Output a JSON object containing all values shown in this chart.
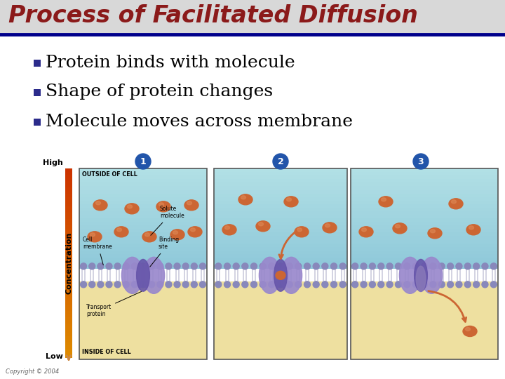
{
  "title": "Process of Facilitated Diffusion",
  "title_color": "#8B1A1A",
  "title_bg_color": "#D8D8D8",
  "underline_color": "#00008B",
  "bullet_color": "#2B2B8B",
  "bullet_points": [
    "Protein binds with molecule",
    "Shape of protein changes",
    "Molecule moves across membrane"
  ],
  "bullet_font_size": 18,
  "bg_color": "#FFFFFF",
  "copyright_text": "Copyright © 2004",
  "concentration_label": "Concentration",
  "high_label": "High",
  "low_label": "Low",
  "step_labels": [
    "1",
    "2",
    "3"
  ],
  "step_label_bg": "#2255AA",
  "outside_label": "OUTSIDE OF CELL",
  "inside_label": "INSIDE OF CELL",
  "conc_bar_top": "#CC3300",
  "conc_bar_bottom": "#DDAA66",
  "membrane_head_color": "#8888BB",
  "protein_color": "#9988CC",
  "protein_dark": "#6655AA",
  "molecule_color": "#CC6633",
  "outside_sky_top": "#99CCDD",
  "outside_sky_bottom": "#AADDEE",
  "inside_bg": "#EEE0A0",
  "panel_border": "#555555",
  "annotation_color": "#111111"
}
